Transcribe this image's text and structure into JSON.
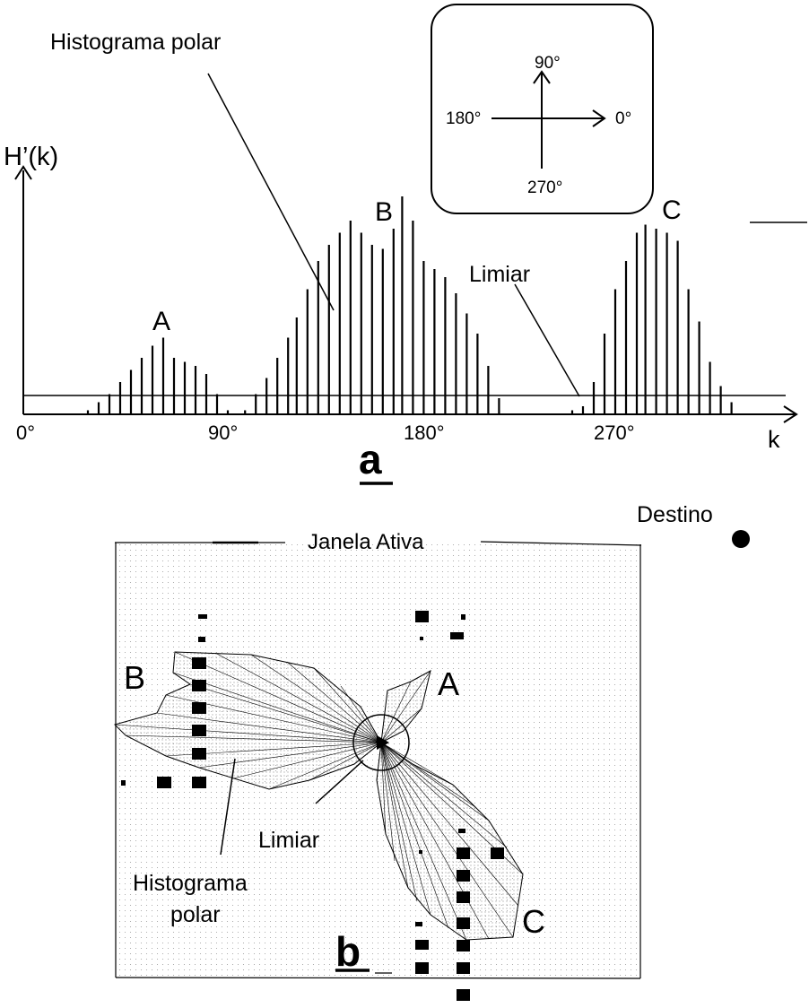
{
  "panel_a": {
    "histogram_label": "Histograma polar",
    "y_axis_label": "H’(k)",
    "x_axis_label": "k",
    "ticks": [
      "0°",
      "90°",
      "180°",
      "270°"
    ],
    "threshold_label": "Limiar",
    "peak_labels": [
      "A",
      "B",
      "C"
    ],
    "panel_letter": "a",
    "compass": {
      "north": "90°",
      "west": "180°",
      "east": "0°",
      "south": "270°"
    }
  },
  "panel_b": {
    "window_label": "Janela Ativa",
    "target_label": "Destino",
    "lobe_labels": [
      "B",
      "A",
      "C"
    ],
    "threshold_label": "Limiar",
    "histogram_label_line1": "Histograma",
    "histogram_label_line2": "polar",
    "panel_letter": "b"
  },
  "chart_data": {
    "type": "bar",
    "xlabel": "k",
    "ylabel": "H’(k)",
    "x_ticks": [
      "0°",
      "90°",
      "180°",
      "270°"
    ],
    "x_unit": "degrees",
    "bar_spacing_deg": 4.9,
    "threshold": 3,
    "series": [
      {
        "name": "A",
        "x": [
          30,
          35,
          40,
          45,
          50,
          55,
          60,
          65,
          70,
          75,
          80,
          85,
          90,
          95
        ],
        "values": [
          1,
          3,
          5,
          8,
          11,
          14,
          17,
          19,
          14,
          13,
          12,
          10,
          5,
          1
        ]
      },
      {
        "name": "B",
        "x": [
          103,
          108,
          113,
          118,
          123,
          127,
          132,
          137,
          142,
          147,
          152,
          157,
          162,
          167,
          172,
          176,
          181,
          186,
          191,
          196,
          201,
          206,
          211,
          216,
          221
        ],
        "values": [
          1,
          5,
          9,
          14,
          19,
          24,
          31,
          38,
          42,
          45,
          48,
          45,
          42,
          41,
          46,
          54,
          48,
          38,
          36,
          34,
          30,
          25,
          20,
          12,
          4
        ]
      },
      {
        "name": "C",
        "x": [
          255,
          260,
          265,
          270,
          275,
          280,
          285,
          289,
          294,
          299,
          304,
          309,
          314,
          319,
          324,
          329
        ],
        "values": [
          1,
          2,
          8,
          20,
          31,
          38,
          45,
          47,
          46,
          45,
          43,
          31,
          23,
          13,
          7,
          3
        ]
      }
    ]
  }
}
